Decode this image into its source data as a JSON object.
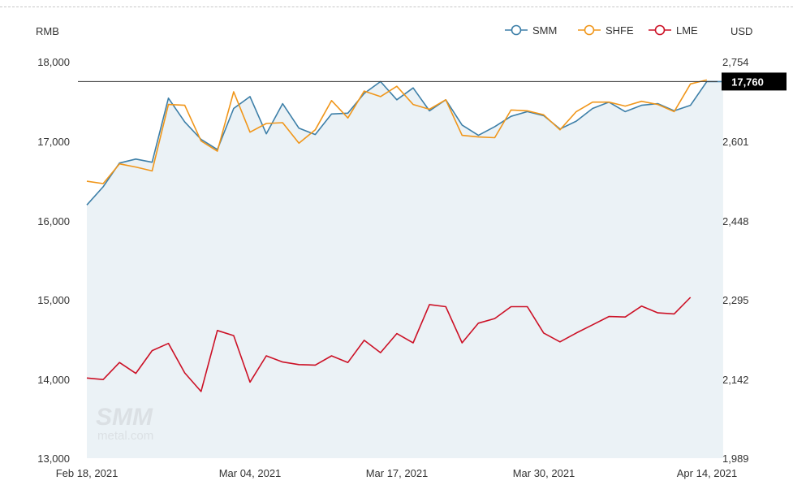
{
  "chart_data": {
    "type": "line",
    "left_axis_unit": "RMB",
    "right_axis_unit": "USD",
    "left_ylim": [
      13000,
      18000
    ],
    "left_ticks": [
      "18,000",
      "17,000",
      "16,000",
      "15,000",
      "14,000",
      "13,000"
    ],
    "right_ylim": [
      1989,
      2754
    ],
    "right_ticks": [
      "2,754",
      "2,601",
      "2,448",
      "2,295",
      "2,142",
      "1,989"
    ],
    "x_tick_labels": [
      "Feb 18, 2021",
      "Mar 04, 2021",
      "Mar 17, 2021",
      "Mar 30, 2021",
      "Apr 14, 2021"
    ],
    "current_value_label": "17,760",
    "current_value": 17760,
    "legend": [
      "SMM",
      "SHFE",
      "LME"
    ],
    "series": [
      {
        "name": "SMM",
        "axis": "left",
        "color": "#3d7fa8",
        "area_fill": true,
        "values": [
          16200,
          16430,
          16730,
          16780,
          16740,
          17550,
          17250,
          17030,
          16900,
          17420,
          17570,
          17100,
          17480,
          17170,
          17090,
          17350,
          17360,
          17610,
          17760,
          17530,
          17680,
          17390,
          17530,
          17210,
          17080,
          17190,
          17320,
          17380,
          17330,
          17160,
          17260,
          17420,
          17500,
          17380,
          17460,
          17480,
          17390,
          17460,
          17760,
          17760
        ]
      },
      {
        "name": "SHFE",
        "axis": "left",
        "color": "#f0961a",
        "values": [
          16500,
          16470,
          16720,
          16680,
          16630,
          17470,
          17460,
          17010,
          16880,
          17630,
          17120,
          17230,
          17240,
          16980,
          17150,
          17520,
          17300,
          17640,
          17570,
          17700,
          17470,
          17410,
          17530,
          17080,
          17060,
          17050,
          17400,
          17390,
          17340,
          17150,
          17380,
          17500,
          17500,
          17450,
          17510,
          17470,
          17380,
          17730,
          17780
        ]
      },
      {
        "name": "LME",
        "axis": "right",
        "color": "#cc1126",
        "values": [
          2144,
          2141,
          2174,
          2153,
          2197,
          2211,
          2154,
          2118,
          2236,
          2226,
          2136,
          2187,
          2175,
          2170,
          2169,
          2187,
          2174,
          2217,
          2193,
          2230,
          2212,
          2286,
          2282,
          2212,
          2250,
          2259,
          2282,
          2282,
          2231,
          2214,
          2231,
          2247,
          2263,
          2262,
          2283,
          2270,
          2268,
          2300
        ]
      }
    ]
  }
}
